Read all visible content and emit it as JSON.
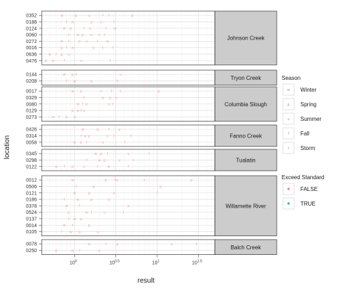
{
  "chart_data": {
    "type": "scatter",
    "xlabel": "result",
    "ylabel": "location",
    "x_scale": "log10",
    "xlim": [
      0.4,
      50
    ],
    "x_ticks": [
      {
        "value": 1,
        "base": "10",
        "exp": "0"
      },
      {
        "value": 3.162,
        "base": "10",
        "exp": "0.5"
      },
      {
        "value": 10,
        "base": "10",
        "exp": "1"
      },
      {
        "value": 31.62,
        "base": "10",
        "exp": "1.5"
      }
    ],
    "grid": true,
    "legend": {
      "position": "right",
      "season": {
        "title": "Season",
        "items": [
          {
            "glyph": "w",
            "label": "Winter"
          },
          {
            "glyph": "p",
            "label": "Spring"
          },
          {
            "glyph": "u",
            "label": "Summer"
          },
          {
            "glyph": "f",
            "label": "Fall"
          },
          {
            "glyph": "t",
            "label": "Storm"
          }
        ]
      },
      "exceed": {
        "title": "Exceed Standard",
        "items": [
          {
            "label": "FALSE",
            "color": "#f8766d"
          },
          {
            "label": "TRUE",
            "color": "#00bfc4"
          }
        ]
      }
    },
    "colors": {
      "point": "#f8a5a0",
      "strip_bg": "#cccccc",
      "panel_border": "#333333"
    },
    "panels": [
      {
        "title": "Johnson Creek",
        "locations": [
          "0352",
          "0188",
          "0124",
          "0060",
          "0272",
          "0016",
          "0636",
          "0476"
        ],
        "points": [
          [
            "0352",
            0.7,
            "w"
          ],
          [
            "0352",
            1.05,
            "p"
          ],
          [
            "0352",
            1.5,
            "u"
          ],
          [
            "0352",
            2.2,
            "f"
          ],
          [
            "0352",
            2.6,
            "t"
          ],
          [
            "0352",
            5.0,
            "p"
          ],
          [
            "0188",
            0.8,
            "f"
          ],
          [
            "0188",
            0.95,
            "w"
          ],
          [
            "0188",
            1.6,
            "p"
          ],
          [
            "0188",
            2.1,
            "u"
          ],
          [
            "0188",
            3.0,
            "f"
          ],
          [
            "0124",
            0.75,
            "w"
          ],
          [
            "0124",
            0.9,
            "p"
          ],
          [
            "0124",
            1.3,
            "f"
          ],
          [
            "0124",
            1.55,
            "u"
          ],
          [
            "0124",
            2.4,
            "t"
          ],
          [
            "0124",
            3.1,
            "w"
          ],
          [
            "0060",
            0.85,
            "f"
          ],
          [
            "0060",
            1.1,
            "w"
          ],
          [
            "0060",
            1.25,
            "p"
          ],
          [
            "0060",
            1.6,
            "u"
          ],
          [
            "0060",
            2.0,
            "t"
          ],
          [
            "0060",
            2.3,
            "f"
          ],
          [
            "0272",
            0.7,
            "w"
          ],
          [
            "0272",
            0.85,
            "f"
          ],
          [
            "0272",
            1.15,
            "p"
          ],
          [
            "0272",
            1.4,
            "u"
          ],
          [
            "0272",
            1.9,
            "t"
          ],
          [
            "0272",
            2.5,
            "w"
          ],
          [
            "0016",
            0.7,
            "p"
          ],
          [
            "0016",
            0.8,
            "f"
          ],
          [
            "0016",
            0.95,
            "w"
          ],
          [
            "0016",
            1.7,
            "u"
          ],
          [
            "0016",
            2.2,
            "t"
          ],
          [
            "0016",
            2.9,
            "f"
          ],
          [
            "0636",
            0.5,
            "w"
          ],
          [
            "0636",
            0.6,
            "f"
          ],
          [
            "0636",
            0.7,
            "p"
          ],
          [
            "0636",
            0.85,
            "u"
          ],
          [
            "0476",
            0.45,
            "p"
          ],
          [
            "0476",
            0.55,
            "w"
          ],
          [
            "0476",
            0.75,
            "f"
          ],
          [
            "0476",
            1.2,
            "u"
          ],
          [
            "0476",
            2.7,
            "t"
          ]
        ]
      },
      {
        "title": "Tryon Creek",
        "locations": [
          "0144",
          "0208"
        ],
        "points": [
          [
            "0144",
            0.75,
            "w"
          ],
          [
            "0144",
            0.95,
            "p"
          ],
          [
            "0144",
            1.05,
            "f"
          ],
          [
            "0144",
            3.6,
            "u"
          ],
          [
            "0208",
            0.8,
            "f"
          ],
          [
            "0208",
            1.0,
            "w"
          ],
          [
            "0208",
            1.6,
            "p"
          ],
          [
            "0208",
            3.3,
            "t"
          ]
        ]
      },
      {
        "title": "Columbia Slough",
        "locations": [
          "0017",
          "0329",
          "0080",
          "0129",
          "0273"
        ],
        "points": [
          [
            "0017",
            0.95,
            "w"
          ],
          [
            "0017",
            1.2,
            "p"
          ],
          [
            "0017",
            2.1,
            "u"
          ],
          [
            "0017",
            2.8,
            "f"
          ],
          [
            "0017",
            3.6,
            "t"
          ],
          [
            "0017",
            10.5,
            "p"
          ],
          [
            "0329",
            1.3,
            "f"
          ],
          [
            "0329",
            2.2,
            "w"
          ],
          [
            "0329",
            2.7,
            "p"
          ],
          [
            "0329",
            3.2,
            "u"
          ],
          [
            "0080",
            1.1,
            "w"
          ],
          [
            "0080",
            1.25,
            "f"
          ],
          [
            "0080",
            1.4,
            "p"
          ],
          [
            "0080",
            2.6,
            "u"
          ],
          [
            "0080",
            2.9,
            "t"
          ],
          [
            "0129",
            0.95,
            "p"
          ],
          [
            "0129",
            1.1,
            "w"
          ],
          [
            "0129",
            1.2,
            "f"
          ],
          [
            "0129",
            1.3,
            "u"
          ],
          [
            "0273",
            0.55,
            "w"
          ],
          [
            "0273",
            0.65,
            "f"
          ],
          [
            "0273",
            0.8,
            "p"
          ],
          [
            "0273",
            1.0,
            "u"
          ]
        ]
      },
      {
        "title": "Fanno Creek",
        "locations": [
          "0426",
          "0314",
          "0058"
        ],
        "points": [
          [
            "0426",
            1.25,
            "w"
          ],
          [
            "0426",
            1.9,
            "p"
          ],
          [
            "0426",
            2.6,
            "f"
          ],
          [
            "0426",
            3.5,
            "u"
          ],
          [
            "0314",
            1.2,
            "f"
          ],
          [
            "0314",
            1.35,
            "w"
          ],
          [
            "0314",
            1.5,
            "p"
          ],
          [
            "0314",
            2.5,
            "u"
          ],
          [
            "0314",
            3.0,
            "t"
          ],
          [
            "0314",
            4.8,
            "f"
          ],
          [
            "0058",
            1.0,
            "w"
          ],
          [
            "0058",
            1.2,
            "p"
          ],
          [
            "0058",
            1.4,
            "f"
          ],
          [
            "0058",
            2.2,
            "u"
          ],
          [
            "0058",
            4.1,
            "t"
          ]
        ]
      },
      {
        "title": "Tualatin",
        "locations": [
          "0345",
          "0298",
          "0122"
        ],
        "points": [
          [
            "0345",
            1.8,
            "w"
          ],
          [
            "0345",
            2.1,
            "p"
          ],
          [
            "0345",
            2.5,
            "f"
          ],
          [
            "0345",
            4.5,
            "u"
          ],
          [
            "0345",
            8.0,
            "t"
          ],
          [
            "0298",
            1.4,
            "f"
          ],
          [
            "0298",
            2.0,
            "w"
          ],
          [
            "0298",
            2.3,
            "p"
          ],
          [
            "0298",
            3.5,
            "u"
          ],
          [
            "0298",
            5.2,
            "t"
          ],
          [
            "0122",
            0.6,
            "w"
          ],
          [
            "0122",
            0.75,
            "f"
          ],
          [
            "0122",
            0.95,
            "p"
          ],
          [
            "0122",
            1.3,
            "u"
          ],
          [
            "0122",
            1.9,
            "t"
          ],
          [
            "0122",
            2.6,
            "w"
          ],
          [
            "0122",
            4.5,
            "f"
          ]
        ]
      },
      {
        "title": "Willamette River",
        "locations": [
          "0012",
          "0506",
          "0121",
          "0186",
          "0378",
          "0524",
          "0137",
          "0014",
          "0105"
        ],
        "points": [
          [
            "0012",
            0.95,
            "w"
          ],
          [
            "0012",
            2.4,
            "p"
          ],
          [
            "0012",
            3.1,
            "f"
          ],
          [
            "0012",
            3.3,
            "u"
          ],
          [
            "0012",
            7.0,
            "t"
          ],
          [
            "0012",
            26,
            "p"
          ],
          [
            "0506",
            1.05,
            "f"
          ],
          [
            "0506",
            1.7,
            "w"
          ],
          [
            "0506",
            11,
            "p"
          ],
          [
            "0121",
            1.0,
            "w"
          ],
          [
            "0121",
            1.5,
            "p"
          ],
          [
            "0121",
            3.0,
            "u"
          ],
          [
            "0121",
            10,
            "f"
          ],
          [
            "0186",
            0.75,
            "f"
          ],
          [
            "0186",
            1.1,
            "w"
          ],
          [
            "0186",
            1.6,
            "p"
          ],
          [
            "0186",
            2.6,
            "u"
          ],
          [
            "0378",
            0.8,
            "w"
          ],
          [
            "0378",
            1.15,
            "f"
          ],
          [
            "0378",
            4.5,
            "p"
          ],
          [
            "0524",
            0.85,
            "p"
          ],
          [
            "0524",
            1.4,
            "w"
          ],
          [
            "0524",
            1.6,
            "f"
          ],
          [
            "0524",
            2.3,
            "u"
          ],
          [
            "0524",
            3.9,
            "t"
          ],
          [
            "0137",
            0.85,
            "f"
          ],
          [
            "0137",
            1.0,
            "w"
          ],
          [
            "0137",
            1.2,
            "p"
          ],
          [
            "0014",
            0.75,
            "w"
          ],
          [
            "0014",
            0.95,
            "f"
          ],
          [
            "0014",
            1.5,
            "p"
          ],
          [
            "0105",
            0.7,
            "f"
          ],
          [
            "0105",
            0.9,
            "w"
          ],
          [
            "0105",
            1.15,
            "p"
          ],
          [
            "0105",
            1.9,
            "u"
          ]
        ]
      },
      {
        "title": "Balch Creek",
        "locations": [
          "0078",
          "0250"
        ],
        "points": [
          [
            "0078",
            1.5,
            "w"
          ],
          [
            "0078",
            2.4,
            "f"
          ],
          [
            "0078",
            3.3,
            "p"
          ],
          [
            "0078",
            15,
            "u"
          ],
          [
            "0078",
            30,
            "t"
          ],
          [
            "0250",
            0.6,
            "p"
          ],
          [
            "0250",
            0.95,
            "w"
          ],
          [
            "0250",
            1.15,
            "f"
          ],
          [
            "0250",
            2.0,
            "u"
          ]
        ]
      }
    ]
  }
}
